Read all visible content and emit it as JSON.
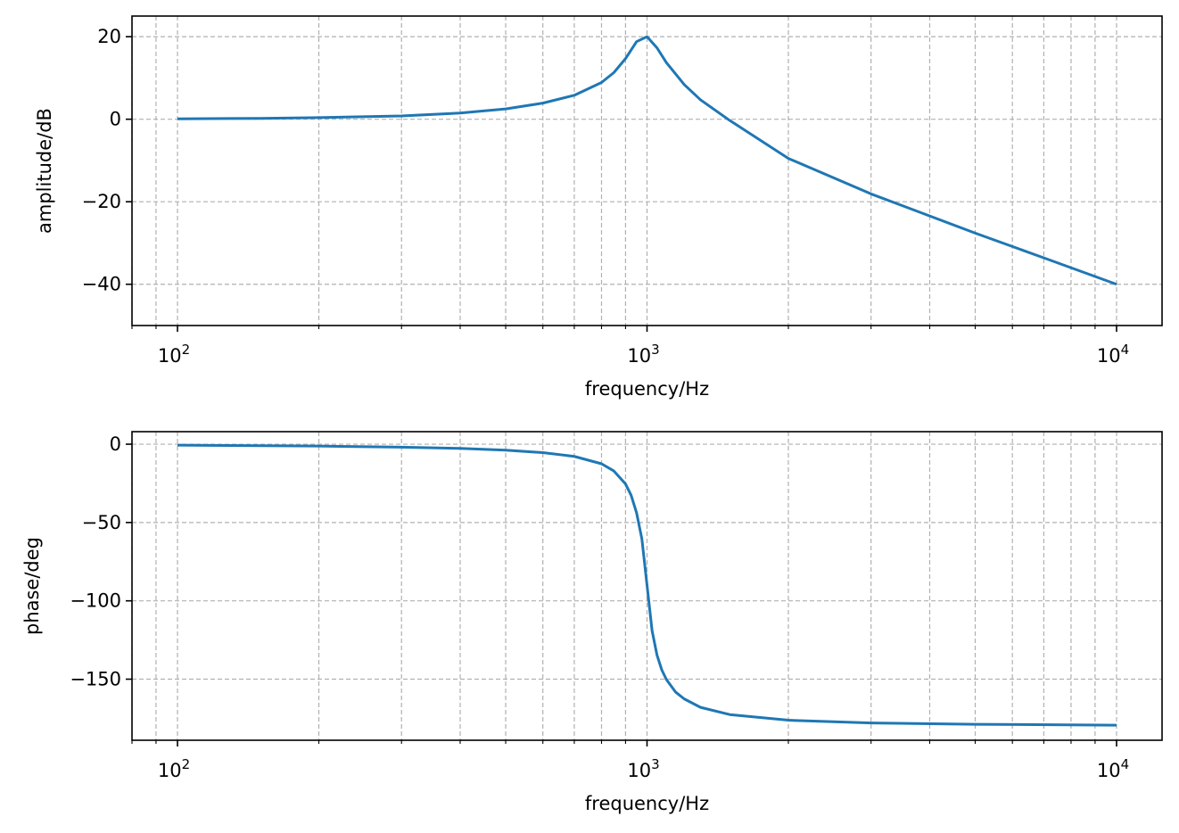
{
  "chart_data": [
    {
      "type": "line",
      "xscale": "log",
      "xlim": [
        80,
        12500
      ],
      "ylim": [
        -50,
        25
      ],
      "xlabel": "frequency/Hz",
      "ylabel": "amplitude/dB",
      "xticks": [
        {
          "base": "10",
          "exp": "2",
          "value": 100
        },
        {
          "base": "10",
          "exp": "3",
          "value": 1000
        },
        {
          "base": "10",
          "exp": "4",
          "value": 10000
        }
      ],
      "yticks": [
        {
          "value": 20,
          "label": "20"
        },
        {
          "value": 0,
          "label": "0"
        },
        {
          "value": -20,
          "label": "−20"
        },
        {
          "value": -40,
          "label": "−40"
        }
      ],
      "grid": true,
      "series": [
        {
          "color": "#1f77b4",
          "x": [
            100,
            150,
            200,
            300,
            400,
            500,
            600,
            700,
            800,
            850,
            900,
            950,
            1000,
            1050,
            1100,
            1200,
            1300,
            1500,
            2000,
            3000,
            5000,
            7000,
            10000
          ],
          "y": [
            0.1,
            0.2,
            0.4,
            0.8,
            1.5,
            2.5,
            3.9,
            5.8,
            8.9,
            11.3,
            14.7,
            18.8,
            20.0,
            17.3,
            13.7,
            8.4,
            4.7,
            -0.3,
            -9.5,
            -18.1,
            -27.6,
            -33.6,
            -40.0
          ]
        }
      ]
    },
    {
      "type": "line",
      "xscale": "log",
      "xlim": [
        80,
        12500
      ],
      "ylim": [
        -189,
        8
      ],
      "xlabel": "frequency/Hz",
      "ylabel": "phase/deg",
      "xticks": [
        {
          "base": "10",
          "exp": "2",
          "value": 100
        },
        {
          "base": "10",
          "exp": "3",
          "value": 1000
        },
        {
          "base": "10",
          "exp": "4",
          "value": 10000
        }
      ],
      "yticks": [
        {
          "value": 0,
          "label": "0"
        },
        {
          "value": -50,
          "label": "−50"
        },
        {
          "value": -100,
          "label": "−100"
        },
        {
          "value": -150,
          "label": "−150"
        }
      ],
      "grid": true,
      "series": [
        {
          "color": "#1f77b4",
          "x": [
            100,
            200,
            300,
            400,
            500,
            600,
            700,
            800,
            850,
            900,
            925,
            950,
            975,
            1000,
            1025,
            1050,
            1075,
            1100,
            1150,
            1200,
            1300,
            1500,
            2000,
            3000,
            5000,
            10000
          ],
          "y": [
            -0.6,
            -1.2,
            -1.9,
            -2.7,
            -3.8,
            -5.4,
            -7.8,
            -12.5,
            -17.1,
            -25.4,
            -32.6,
            -43.8,
            -60.4,
            -90.0,
            -119.0,
            -134.6,
            -144.1,
            -150.3,
            -158.2,
            -162.6,
            -168.0,
            -172.6,
            -176.2,
            -178.0,
            -178.8,
            -179.4
          ]
        }
      ]
    }
  ]
}
